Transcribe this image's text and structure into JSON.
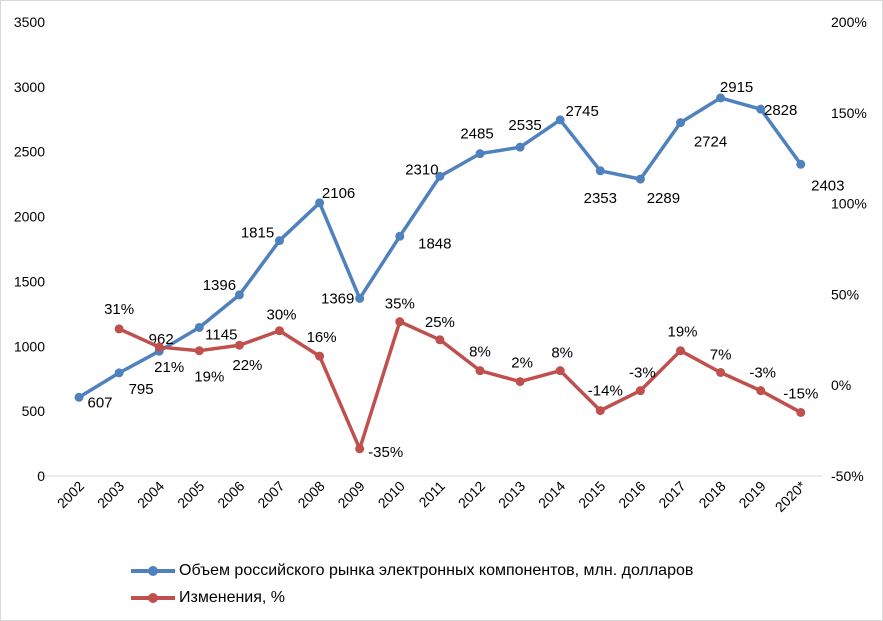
{
  "chart_data": {
    "type": "line",
    "title": "",
    "categories": [
      "2002",
      "2003",
      "2004",
      "2005",
      "2006",
      "2007",
      "2008",
      "2009",
      "2010",
      "2011",
      "2012",
      "2013",
      "2014",
      "2015",
      "2016",
      "2017",
      "2018",
      "2019",
      "2020*"
    ],
    "left_axis": {
      "min": 0,
      "max": 3500,
      "ticks": [
        "0",
        "500",
        "1000",
        "1500",
        "2000",
        "2500",
        "3000",
        "3500"
      ]
    },
    "right_axis": {
      "min": -50,
      "max": 200,
      "ticks": [
        "-50%",
        "0%",
        "50%",
        "100%",
        "150%",
        "200%"
      ]
    },
    "grid": false,
    "legend_position": "bottom",
    "series": [
      {
        "name": "Объем российского рынка электронных компонентов, млн. долларов",
        "axis": "left",
        "color": "#4F81BD",
        "values": [
          607,
          795,
          962,
          1145,
          1396,
          1815,
          2106,
          1369,
          1848,
          2310,
          2485,
          2535,
          2745,
          2353,
          2289,
          2724,
          2915,
          2828,
          2403
        ],
        "labels": [
          "607",
          "795",
          "962",
          "1145",
          "1396",
          "1815",
          "2106",
          "1369",
          "1848",
          "2310",
          "2485",
          "2535",
          "2745",
          "2353",
          "2289",
          "2724",
          "2915",
          "2828",
          "2403"
        ]
      },
      {
        "name": "Изменения, %",
        "axis": "right",
        "color": "#C0504D",
        "values": [
          null,
          31,
          21,
          19,
          22,
          30,
          16,
          -35,
          35,
          25,
          8,
          2,
          8,
          -14,
          -3,
          19,
          7,
          -3,
          -15
        ],
        "labels": [
          null,
          "31%",
          "21%",
          "19%",
          "22%",
          "30%",
          "16%",
          "-35%",
          "35%",
          "25%",
          "8%",
          "2%",
          "8%",
          "-14%",
          "-3%",
          "19%",
          "7%",
          "-3%",
          "-15%"
        ]
      }
    ]
  }
}
